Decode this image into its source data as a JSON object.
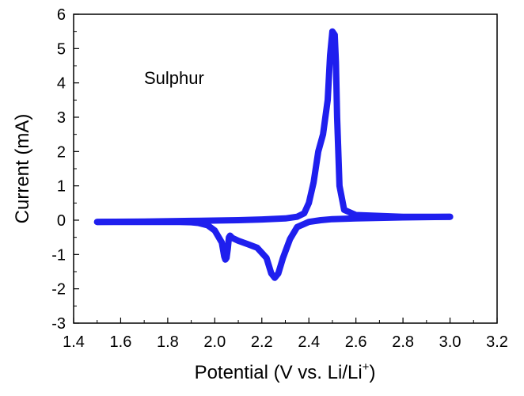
{
  "chart_data": {
    "type": "line",
    "title": "",
    "annotation": "Sulphur",
    "xlabel": "Potential (V vs. Li/Li",
    "xlabel_sup": "+",
    "xlabel_close": ")",
    "ylabel": "Current (mA)",
    "xlim": [
      1.4,
      3.2
    ],
    "ylim": [
      -3,
      6
    ],
    "x_ticks": [
      "1.4",
      "1.6",
      "1.8",
      "2.0",
      "2.2",
      "2.4",
      "2.6",
      "2.8",
      "3.0",
      "3.2"
    ],
    "y_ticks": [
      "-3",
      "-2",
      "-1",
      "0",
      "1",
      "2",
      "3",
      "4",
      "5",
      "6"
    ],
    "grid": false,
    "series_color": "#1f1fee",
    "series": [
      {
        "segment": "cathodic-sweep",
        "x": [
          3.0,
          2.8,
          2.6,
          2.5,
          2.45,
          2.4,
          2.35,
          2.32,
          2.29,
          2.27,
          2.255,
          2.24,
          2.22,
          2.18,
          2.14,
          2.1,
          2.075,
          2.065,
          2.06,
          2.055,
          2.05,
          2.045,
          2.04,
          2.03,
          2.0,
          1.97,
          1.93,
          1.9,
          1.85,
          1.8,
          1.7,
          1.6,
          1.5
        ],
        "y": [
          0.1,
          0.08,
          0.05,
          0.03,
          0.0,
          -0.05,
          -0.2,
          -0.55,
          -1.1,
          -1.55,
          -1.68,
          -1.55,
          -1.1,
          -0.8,
          -0.7,
          -0.6,
          -0.52,
          -0.45,
          -0.5,
          -0.85,
          -1.1,
          -1.15,
          -1.05,
          -0.65,
          -0.3,
          -0.15,
          -0.08,
          -0.06,
          -0.05,
          -0.05,
          -0.05,
          -0.05,
          -0.05
        ]
      },
      {
        "segment": "anodic-sweep",
        "x": [
          1.5,
          1.7,
          1.9,
          2.1,
          2.2,
          2.3,
          2.35,
          2.38,
          2.4,
          2.42,
          2.44,
          2.46,
          2.48,
          2.49,
          2.5,
          2.51,
          2.515,
          2.52,
          2.53,
          2.55,
          2.6,
          2.8,
          3.0
        ],
        "y": [
          -0.05,
          -0.04,
          -0.02,
          0.0,
          0.02,
          0.05,
          0.1,
          0.2,
          0.5,
          1.1,
          2.0,
          2.5,
          3.5,
          4.8,
          5.5,
          5.4,
          4.6,
          3.0,
          1.0,
          0.3,
          0.15,
          0.1,
          0.1
        ]
      }
    ]
  }
}
